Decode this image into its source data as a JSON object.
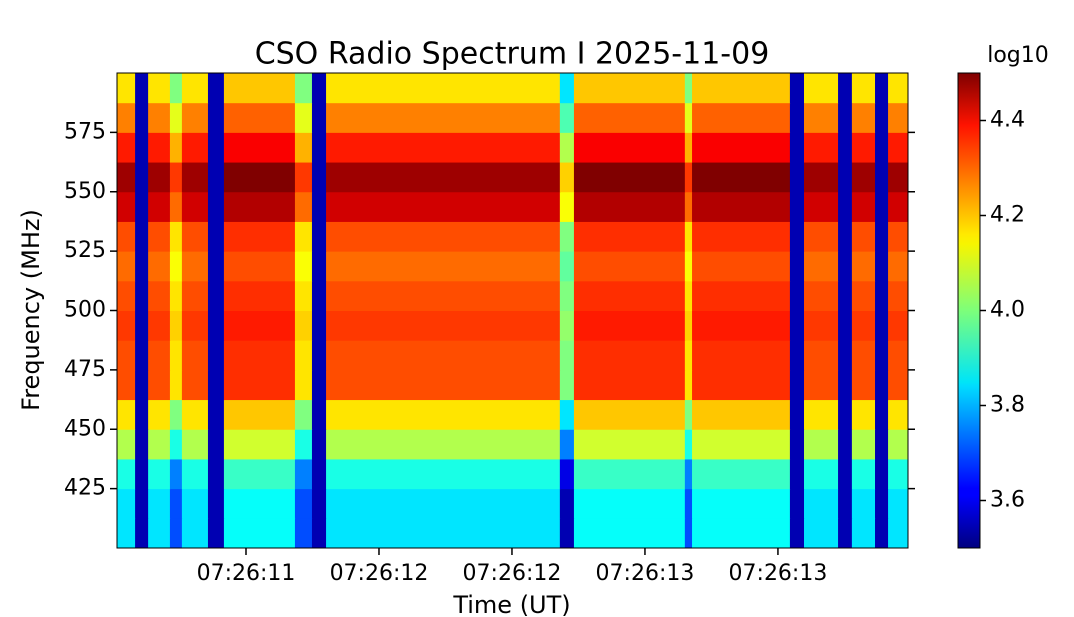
{
  "chart_data": {
    "type": "heatmap",
    "title": "CSO Radio Spectrum I 2025-11-09",
    "xlabel": "Time (UT)",
    "ylabel": "Frequency (MHz)",
    "colorbar_label": "log10",
    "colormap": "jet",
    "x": [
      11.015,
      11.083,
      11.132,
      11.214,
      11.259,
      11.357,
      11.417,
      11.684,
      11.748,
      11.801,
      12.68,
      12.733,
      13.15,
      13.177,
      13.545,
      13.598,
      13.726,
      13.778,
      13.865,
      13.914,
      13.989
    ],
    "y": [
      400,
      412.5,
      425,
      437.5,
      450,
      462.5,
      475,
      487.5,
      500,
      512.5,
      525,
      537.5,
      550,
      562.5,
      575,
      587.5,
      600
    ],
    "z": [
      [
        3.85,
        3.55,
        3.85,
        3.7,
        3.85,
        3.55,
        3.88,
        3.7,
        3.55,
        3.85,
        3.55,
        3.88,
        3.7,
        3.88,
        3.55,
        3.85,
        3.55,
        3.85,
        3.55,
        3.85
      ],
      [
        3.85,
        3.55,
        3.85,
        3.7,
        3.85,
        3.55,
        3.88,
        3.7,
        3.55,
        3.85,
        3.55,
        3.88,
        3.7,
        3.88,
        3.55,
        3.85,
        3.55,
        3.85,
        3.55,
        3.85
      ],
      [
        3.9,
        3.55,
        3.9,
        3.75,
        3.9,
        3.55,
        3.93,
        3.75,
        3.55,
        3.9,
        3.6,
        3.93,
        3.75,
        3.93,
        3.55,
        3.9,
        3.55,
        3.9,
        3.55,
        3.9
      ],
      [
        4.05,
        3.55,
        4.05,
        3.9,
        4.05,
        3.55,
        4.08,
        3.9,
        3.55,
        4.05,
        3.75,
        4.08,
        3.9,
        4.08,
        3.55,
        4.05,
        3.55,
        4.05,
        3.55,
        4.05
      ],
      [
        4.15,
        3.55,
        4.15,
        4.0,
        4.15,
        3.55,
        4.18,
        4.0,
        3.55,
        4.15,
        3.85,
        4.18,
        4.0,
        4.18,
        3.55,
        4.15,
        3.55,
        4.15,
        3.55,
        4.15
      ],
      [
        4.3,
        3.55,
        4.3,
        4.15,
        4.3,
        3.55,
        4.33,
        4.15,
        3.55,
        4.3,
        4.0,
        4.33,
        4.15,
        4.33,
        3.55,
        4.3,
        3.55,
        4.3,
        3.55,
        4.3
      ],
      [
        4.3,
        3.55,
        4.3,
        4.15,
        4.3,
        3.55,
        4.33,
        4.15,
        3.55,
        4.3,
        4.0,
        4.33,
        4.15,
        4.33,
        3.55,
        4.3,
        3.55,
        4.3,
        3.55,
        4.3
      ],
      [
        4.32,
        3.55,
        4.32,
        4.17,
        4.32,
        3.55,
        4.35,
        4.17,
        3.55,
        4.32,
        4.02,
        4.35,
        4.17,
        4.35,
        3.55,
        4.32,
        3.55,
        4.32,
        3.55,
        4.32
      ],
      [
        4.3,
        3.55,
        4.3,
        4.15,
        4.3,
        3.55,
        4.33,
        4.15,
        3.55,
        4.3,
        4.0,
        4.33,
        4.15,
        4.33,
        3.55,
        4.3,
        3.55,
        4.3,
        3.55,
        4.3
      ],
      [
        4.27,
        3.55,
        4.27,
        4.12,
        4.27,
        3.55,
        4.3,
        4.12,
        3.55,
        4.27,
        3.97,
        4.3,
        4.12,
        4.3,
        3.55,
        4.27,
        3.55,
        4.27,
        3.55,
        4.27
      ],
      [
        4.3,
        3.55,
        4.3,
        4.15,
        4.3,
        3.55,
        4.33,
        4.15,
        3.55,
        4.3,
        4.0,
        4.33,
        4.15,
        4.33,
        3.55,
        4.3,
        3.55,
        4.3,
        3.55,
        4.3
      ],
      [
        4.42,
        3.55,
        4.42,
        4.27,
        4.42,
        3.55,
        4.45,
        4.27,
        3.55,
        4.42,
        4.12,
        4.45,
        4.27,
        4.45,
        3.55,
        4.42,
        3.55,
        4.42,
        3.55,
        4.42
      ],
      [
        4.47,
        3.55,
        4.47,
        4.32,
        4.47,
        3.55,
        4.5,
        4.32,
        3.55,
        4.47,
        4.17,
        4.5,
        4.32,
        4.5,
        3.55,
        4.47,
        3.55,
        4.47,
        3.55,
        4.47
      ],
      [
        4.35,
        3.55,
        4.35,
        4.2,
        4.35,
        3.55,
        4.38,
        4.2,
        3.55,
        4.35,
        4.05,
        4.38,
        4.2,
        4.38,
        3.55,
        4.35,
        3.55,
        4.35,
        3.55,
        4.35
      ],
      [
        4.25,
        3.55,
        4.25,
        4.1,
        4.25,
        3.55,
        4.28,
        4.1,
        3.55,
        4.25,
        3.95,
        4.28,
        4.1,
        4.28,
        3.55,
        4.25,
        3.55,
        4.25,
        3.55,
        4.25
      ],
      [
        4.15,
        3.55,
        4.15,
        4.0,
        4.15,
        3.55,
        4.18,
        4.0,
        3.55,
        4.15,
        3.85,
        4.18,
        4.0,
        4.18,
        3.55,
        4.15,
        3.55,
        4.15,
        3.55,
        4.15
      ]
    ],
    "xlim": [
      11.015,
      13.989
    ],
    "xticks": [
      {
        "value": 11.5,
        "label": "07:26:11"
      },
      {
        "value": 12.0,
        "label": "07:26:12"
      },
      {
        "value": 12.5,
        "label": "07:26:12"
      },
      {
        "value": 13.0,
        "label": "07:26:13"
      },
      {
        "value": 13.5,
        "label": "07:26:13"
      }
    ],
    "ylim": [
      400,
      600
    ],
    "yticks": [
      425,
      450,
      475,
      500,
      525,
      550,
      575
    ],
    "clim": [
      3.5,
      4.5
    ],
    "cticks": [
      3.6,
      3.8,
      {
        "value": 4,
        "label": "4.0"
      },
      4.2,
      4.4
    ]
  }
}
